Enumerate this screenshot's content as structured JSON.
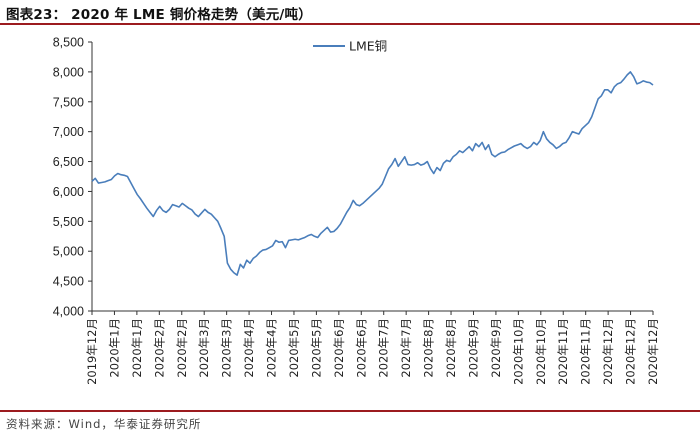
{
  "header": {
    "title": "图表23：  2020 年 LME 铜价格走势（美元/吨）"
  },
  "footer": {
    "source": "资料来源：Wind，华泰证券研究所"
  },
  "chart_data": {
    "type": "line",
    "ylim": [
      4000,
      8500
    ],
    "yticks": [
      4000,
      4500,
      5000,
      5500,
      6000,
      6500,
      7000,
      7500,
      8000,
      8500
    ],
    "ytick_labels": [
      "4,000",
      "4,500",
      "5,000",
      "5,500",
      "6,000",
      "6,500",
      "7,000",
      "7,500",
      "8,000",
      "8,500"
    ],
    "x_labels": [
      "2019年12月",
      "2020年1月",
      "2020年1月",
      "2020年2月",
      "2020年2月",
      "2020年3月",
      "2020年3月",
      "2020年4月",
      "2020年4月",
      "2020年5月",
      "2020年5月",
      "2020年6月",
      "2020年6月",
      "2020年7月",
      "2020年7月",
      "2020年8月",
      "2020年8月",
      "2020年9月",
      "2020年9月",
      "2020年10月",
      "2020年10月",
      "2020年11月",
      "2020年11月",
      "2020年12月",
      "2020年12月",
      "2020年12月"
    ],
    "legend": {
      "position": "top-center"
    },
    "grid": false,
    "series": [
      {
        "name": "LME铜",
        "color": "#4a7ebb",
        "values": [
          6170,
          6220,
          6140,
          6150,
          6160,
          6180,
          6200,
          6260,
          6300,
          6280,
          6270,
          6250,
          6150,
          6050,
          5950,
          5880,
          5800,
          5720,
          5650,
          5580,
          5680,
          5750,
          5680,
          5650,
          5700,
          5780,
          5760,
          5740,
          5800,
          5760,
          5720,
          5690,
          5620,
          5580,
          5640,
          5700,
          5650,
          5620,
          5560,
          5500,
          5380,
          5250,
          4800,
          4700,
          4640,
          4600,
          4780,
          4720,
          4850,
          4800,
          4880,
          4920,
          4980,
          5020,
          5030,
          5060,
          5090,
          5180,
          5150,
          5160,
          5060,
          5180,
          5190,
          5200,
          5190,
          5210,
          5230,
          5260,
          5280,
          5250,
          5230,
          5300,
          5350,
          5400,
          5320,
          5330,
          5380,
          5450,
          5550,
          5650,
          5730,
          5850,
          5780,
          5760,
          5800,
          5850,
          5900,
          5950,
          6000,
          6050,
          6120,
          6250,
          6380,
          6450,
          6550,
          6420,
          6500,
          6580,
          6450,
          6440,
          6450,
          6480,
          6440,
          6460,
          6500,
          6380,
          6300,
          6400,
          6350,
          6470,
          6520,
          6500,
          6580,
          6620,
          6680,
          6650,
          6700,
          6750,
          6680,
          6800,
          6750,
          6820,
          6700,
          6780,
          6620,
          6580,
          6620,
          6650,
          6660,
          6700,
          6730,
          6760,
          6780,
          6800,
          6750,
          6720,
          6750,
          6820,
          6780,
          6850,
          7000,
          6880,
          6820,
          6780,
          6720,
          6750,
          6800,
          6820,
          6900,
          7000,
          6980,
          6960,
          7050,
          7100,
          7150,
          7250,
          7400,
          7550,
          7600,
          7700,
          7700,
          7650,
          7750,
          7800,
          7820,
          7880,
          7950,
          8000,
          7920,
          7800,
          7820,
          7850,
          7830,
          7820,
          7780
        ]
      }
    ]
  }
}
